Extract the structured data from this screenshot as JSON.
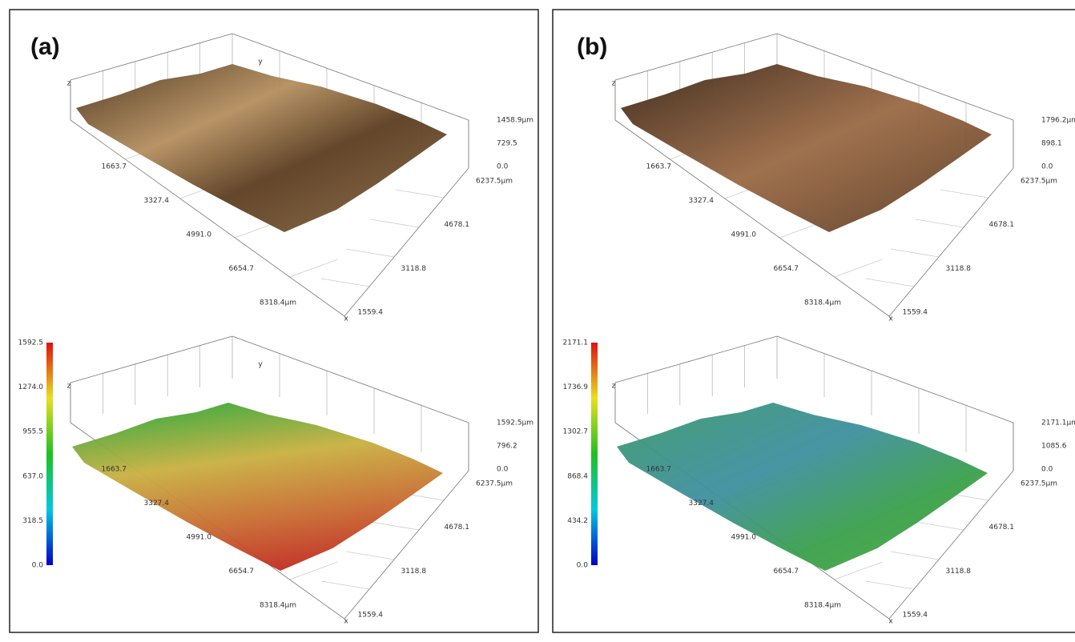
{
  "panels": [
    {
      "label": "(a)",
      "plots": [
        {
          "z_axis": "z",
          "y_axis": "y",
          "x_axis": "x",
          "z_ticks": [
            "1458.9μm",
            "729.5",
            "0.0"
          ],
          "y_ticks": [
            "6237.5μm",
            "4678.1",
            "3118.8",
            "1559.4"
          ],
          "x_ticks": [
            "1663.7",
            "3327.4",
            "4991.0",
            "6654.7",
            "8318.4μm"
          ]
        },
        {
          "z_axis": "z",
          "y_axis": "y",
          "x_axis": "x",
          "z_ticks": [
            "1592.5μm",
            "796.2",
            "0.0"
          ],
          "y_ticks": [
            "6237.5μm",
            "4678.1",
            "3118.8",
            "1559.4"
          ],
          "x_ticks": [
            "1663.7",
            "3327.4",
            "4991.0",
            "6654.7",
            "8318.4μm"
          ],
          "colorbar": [
            "1592.5",
            "1274.0",
            "955.5",
            "637.0",
            "318.5",
            "0.0"
          ]
        }
      ]
    },
    {
      "label": "(b)",
      "plots": [
        {
          "z_axis": "z",
          "x_axis": "x",
          "z_ticks": [
            "1796.2μm",
            "898.1",
            "0.0"
          ],
          "y_ticks": [
            "6237.5μm",
            "4678.1",
            "3118.8",
            "1559.4"
          ],
          "x_ticks": [
            "1663.7",
            "3327.4",
            "4991.0",
            "6654.7",
            "8318.4μm"
          ]
        },
        {
          "z_axis": "z",
          "x_axis": "x",
          "z_ticks": [
            "2171.1μm",
            "1085.6",
            "0.0"
          ],
          "y_ticks": [
            "6237.5μm",
            "4678.1",
            "3118.8",
            "1559.4"
          ],
          "x_ticks": [
            "1663.7",
            "3327.4",
            "4991.0",
            "6654.7",
            "8318.4μm"
          ],
          "colorbar": [
            "2171.1",
            "1736.9",
            "1302.7",
            "868.4",
            "434.2",
            "0.0"
          ]
        }
      ]
    }
  ]
}
